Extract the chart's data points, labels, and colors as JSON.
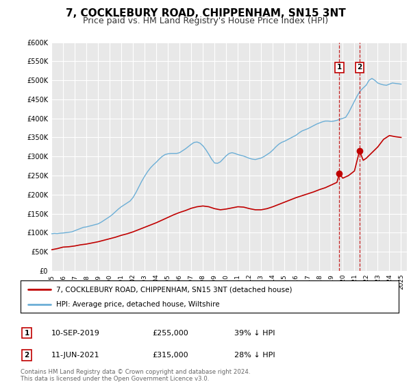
{
  "title": "7, COCKLEBURY ROAD, CHIPPENHAM, SN15 3NT",
  "subtitle": "Price paid vs. HM Land Registry's House Price Index (HPI)",
  "title_fontsize": 11,
  "subtitle_fontsize": 9,
  "background_color": "#ffffff",
  "plot_bg_color": "#e8e8e8",
  "grid_color": "#ffffff",
  "hpi_color": "#6baed6",
  "price_color": "#c00000",
  "ylim": [
    0,
    600000
  ],
  "xlim_start": 1995.0,
  "xlim_end": 2025.5,
  "yticks": [
    0,
    50000,
    100000,
    150000,
    200000,
    250000,
    300000,
    350000,
    400000,
    450000,
    500000,
    550000,
    600000
  ],
  "ytick_labels": [
    "£0",
    "£50K",
    "£100K",
    "£150K",
    "£200K",
    "£250K",
    "£300K",
    "£350K",
    "£400K",
    "£450K",
    "£500K",
    "£550K",
    "£600K"
  ],
  "xticks": [
    1995,
    1996,
    1997,
    1998,
    1999,
    2000,
    2001,
    2002,
    2003,
    2004,
    2005,
    2006,
    2007,
    2008,
    2009,
    2010,
    2011,
    2012,
    2013,
    2014,
    2015,
    2016,
    2017,
    2018,
    2019,
    2020,
    2021,
    2022,
    2023,
    2024,
    2025
  ],
  "marker1_x": 2019.71,
  "marker1_y": 255000,
  "marker2_x": 2021.44,
  "marker2_y": 315000,
  "legend_entry1": "7, COCKLEBURY ROAD, CHIPPENHAM, SN15 3NT (detached house)",
  "legend_entry2": "HPI: Average price, detached house, Wiltshire",
  "table_row1": [
    "1",
    "10-SEP-2019",
    "£255,000",
    "39% ↓ HPI"
  ],
  "table_row2": [
    "2",
    "11-JUN-2021",
    "£315,000",
    "28% ↓ HPI"
  ],
  "footnote": "Contains HM Land Registry data © Crown copyright and database right 2024.\nThis data is licensed under the Open Government Licence v3.0.",
  "hpi_data": [
    [
      1995.0,
      97000
    ],
    [
      1995.25,
      98000
    ],
    [
      1995.5,
      97500
    ],
    [
      1995.75,
      98500
    ],
    [
      1996.0,
      99000
    ],
    [
      1996.25,
      100000
    ],
    [
      1996.5,
      101000
    ],
    [
      1996.75,
      102000
    ],
    [
      1997.0,
      105000
    ],
    [
      1997.25,
      108000
    ],
    [
      1997.5,
      111000
    ],
    [
      1997.75,
      114000
    ],
    [
      1998.0,
      115000
    ],
    [
      1998.25,
      117000
    ],
    [
      1998.5,
      119000
    ],
    [
      1998.75,
      121000
    ],
    [
      1999.0,
      123000
    ],
    [
      1999.25,
      127000
    ],
    [
      1999.5,
      132000
    ],
    [
      1999.75,
      137000
    ],
    [
      2000.0,
      142000
    ],
    [
      2000.25,
      148000
    ],
    [
      2000.5,
      155000
    ],
    [
      2000.75,
      162000
    ],
    [
      2001.0,
      168000
    ],
    [
      2001.25,
      173000
    ],
    [
      2001.5,
      178000
    ],
    [
      2001.75,
      183000
    ],
    [
      2002.0,
      192000
    ],
    [
      2002.25,
      205000
    ],
    [
      2002.5,
      220000
    ],
    [
      2002.75,
      235000
    ],
    [
      2003.0,
      248000
    ],
    [
      2003.25,
      260000
    ],
    [
      2003.5,
      270000
    ],
    [
      2003.75,
      278000
    ],
    [
      2004.0,
      285000
    ],
    [
      2004.25,
      293000
    ],
    [
      2004.5,
      300000
    ],
    [
      2004.75,
      305000
    ],
    [
      2005.0,
      307000
    ],
    [
      2005.25,
      308000
    ],
    [
      2005.5,
      308000
    ],
    [
      2005.75,
      308000
    ],
    [
      2006.0,
      310000
    ],
    [
      2006.25,
      315000
    ],
    [
      2006.5,
      320000
    ],
    [
      2006.75,
      326000
    ],
    [
      2007.0,
      332000
    ],
    [
      2007.25,
      337000
    ],
    [
      2007.5,
      338000
    ],
    [
      2007.75,
      335000
    ],
    [
      2008.0,
      328000
    ],
    [
      2008.25,
      318000
    ],
    [
      2008.5,
      306000
    ],
    [
      2008.75,
      293000
    ],
    [
      2009.0,
      283000
    ],
    [
      2009.25,
      282000
    ],
    [
      2009.5,
      286000
    ],
    [
      2009.75,
      294000
    ],
    [
      2010.0,
      302000
    ],
    [
      2010.25,
      308000
    ],
    [
      2010.5,
      310000
    ],
    [
      2010.75,
      308000
    ],
    [
      2011.0,
      305000
    ],
    [
      2011.25,
      303000
    ],
    [
      2011.5,
      301000
    ],
    [
      2011.75,
      298000
    ],
    [
      2012.0,
      295000
    ],
    [
      2012.25,
      293000
    ],
    [
      2012.5,
      292000
    ],
    [
      2012.75,
      294000
    ],
    [
      2013.0,
      296000
    ],
    [
      2013.25,
      300000
    ],
    [
      2013.5,
      305000
    ],
    [
      2013.75,
      310000
    ],
    [
      2014.0,
      317000
    ],
    [
      2014.25,
      325000
    ],
    [
      2014.5,
      332000
    ],
    [
      2014.75,
      337000
    ],
    [
      2015.0,
      340000
    ],
    [
      2015.25,
      344000
    ],
    [
      2015.5,
      348000
    ],
    [
      2015.75,
      352000
    ],
    [
      2016.0,
      356000
    ],
    [
      2016.25,
      362000
    ],
    [
      2016.5,
      367000
    ],
    [
      2016.75,
      370000
    ],
    [
      2017.0,
      373000
    ],
    [
      2017.25,
      377000
    ],
    [
      2017.5,
      381000
    ],
    [
      2017.75,
      385000
    ],
    [
      2018.0,
      388000
    ],
    [
      2018.25,
      391000
    ],
    [
      2018.5,
      393000
    ],
    [
      2018.75,
      393000
    ],
    [
      2019.0,
      392000
    ],
    [
      2019.25,
      393000
    ],
    [
      2019.5,
      395000
    ],
    [
      2019.75,
      398000
    ],
    [
      2020.0,
      400000
    ],
    [
      2020.25,
      403000
    ],
    [
      2020.5,
      415000
    ],
    [
      2020.75,
      430000
    ],
    [
      2021.0,
      445000
    ],
    [
      2021.25,
      460000
    ],
    [
      2021.5,
      472000
    ],
    [
      2021.75,
      480000
    ],
    [
      2022.0,
      487000
    ],
    [
      2022.25,
      500000
    ],
    [
      2022.5,
      505000
    ],
    [
      2022.75,
      500000
    ],
    [
      2023.0,
      493000
    ],
    [
      2023.25,
      490000
    ],
    [
      2023.5,
      488000
    ],
    [
      2023.75,
      487000
    ],
    [
      2024.0,
      490000
    ],
    [
      2024.25,
      493000
    ],
    [
      2024.5,
      492000
    ],
    [
      2024.75,
      491000
    ],
    [
      2025.0,
      490000
    ]
  ],
  "price_data": [
    [
      1995.0,
      55000
    ],
    [
      1995.5,
      58000
    ],
    [
      1996.0,
      62000
    ],
    [
      1996.5,
      63000
    ],
    [
      1997.0,
      65000
    ],
    [
      1997.5,
      68000
    ],
    [
      1998.0,
      70000
    ],
    [
      1998.5,
      73000
    ],
    [
      1999.0,
      76000
    ],
    [
      1999.5,
      80000
    ],
    [
      2000.0,
      84000
    ],
    [
      2000.5,
      88000
    ],
    [
      2001.0,
      93000
    ],
    [
      2001.5,
      97000
    ],
    [
      2002.0,
      102000
    ],
    [
      2002.5,
      108000
    ],
    [
      2003.0,
      114000
    ],
    [
      2003.5,
      120000
    ],
    [
      2004.0,
      126000
    ],
    [
      2004.5,
      133000
    ],
    [
      2005.0,
      140000
    ],
    [
      2005.5,
      147000
    ],
    [
      2006.0,
      153000
    ],
    [
      2006.5,
      158000
    ],
    [
      2007.0,
      164000
    ],
    [
      2007.5,
      168000
    ],
    [
      2008.0,
      170000
    ],
    [
      2008.5,
      168000
    ],
    [
      2009.0,
      163000
    ],
    [
      2009.5,
      160000
    ],
    [
      2010.0,
      162000
    ],
    [
      2010.5,
      165000
    ],
    [
      2011.0,
      168000
    ],
    [
      2011.5,
      167000
    ],
    [
      2012.0,
      163000
    ],
    [
      2012.5,
      160000
    ],
    [
      2013.0,
      160000
    ],
    [
      2013.5,
      163000
    ],
    [
      2014.0,
      168000
    ],
    [
      2014.5,
      174000
    ],
    [
      2015.0,
      180000
    ],
    [
      2015.5,
      186000
    ],
    [
      2016.0,
      192000
    ],
    [
      2016.5,
      197000
    ],
    [
      2017.0,
      202000
    ],
    [
      2017.5,
      207000
    ],
    [
      2018.0,
      213000
    ],
    [
      2018.5,
      218000
    ],
    [
      2019.0,
      225000
    ],
    [
      2019.5,
      232000
    ],
    [
      2019.71,
      255000
    ],
    [
      2020.0,
      243000
    ],
    [
      2020.5,
      250000
    ],
    [
      2021.0,
      262000
    ],
    [
      2021.44,
      315000
    ],
    [
      2021.75,
      290000
    ],
    [
      2022.0,
      295000
    ],
    [
      2022.5,
      310000
    ],
    [
      2023.0,
      325000
    ],
    [
      2023.5,
      345000
    ],
    [
      2024.0,
      355000
    ],
    [
      2024.5,
      352000
    ],
    [
      2025.0,
      350000
    ]
  ]
}
